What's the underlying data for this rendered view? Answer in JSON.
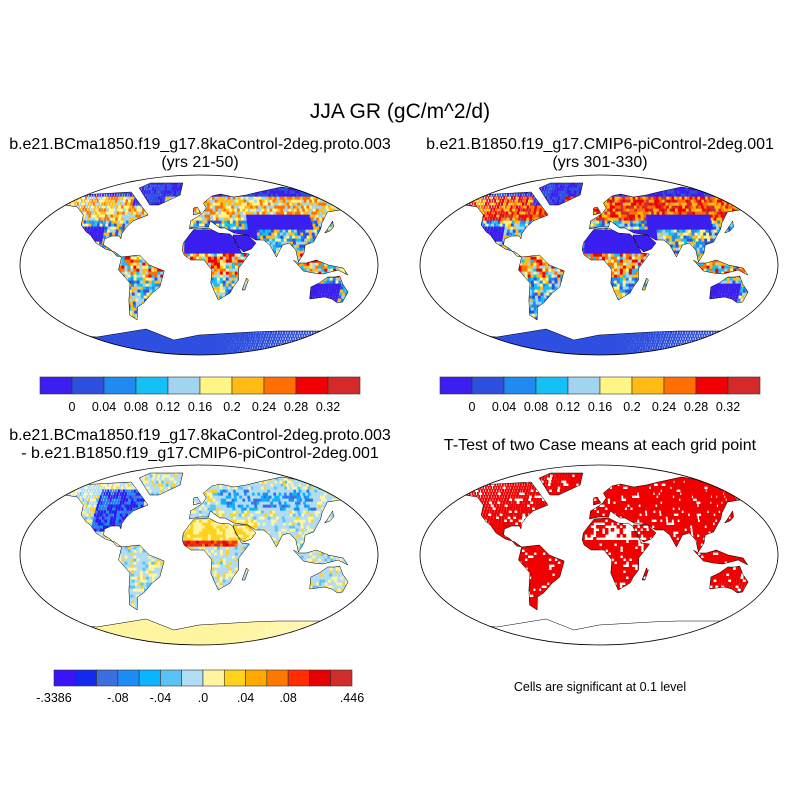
{
  "title": "JJA GR (gC/m^2/d)",
  "panels": [
    {
      "title_line1": "b.e21.BCma1850.f19_g17.8kaControl-2deg.proto.003",
      "title_line2": "(yrs 21-50)",
      "kind": "abs"
    },
    {
      "title_line1": "b.e21.B1850.f19_g17.CMIP6-piControl-2deg.001",
      "title_line2": "(yrs 301-330)",
      "kind": "abs2"
    },
    {
      "title_line1": "b.e21.BCma1850.f19_g17.8kaControl-2deg.proto.003",
      "title_line2": "- b.e21.B1850.f19_g17.CMIP6-piControl-2deg.001",
      "kind": "diff"
    },
    {
      "title_line1": "T-Test of two Case means at each grid point",
      "kind": "ttest"
    }
  ],
  "colorbar_abs": {
    "colors": [
      "#3b1ef0",
      "#2e4fe0",
      "#1f8af0",
      "#14c0f5",
      "#a0d4f0",
      "#fff585",
      "#ffbb14",
      "#ff7000",
      "#f00000",
      "#d42a2a"
    ],
    "labels": [
      "0",
      "0.04",
      "0.08",
      "0.12",
      "0.16",
      "0.2",
      "0.24",
      "0.28",
      "0.32"
    ]
  },
  "colorbar_diff": {
    "colors": [
      "#3b14f5",
      "#1428f0",
      "#3c6ee0",
      "#1e8cf5",
      "#0ab4ff",
      "#5ac3f5",
      "#b0dcf5",
      "#fff5a0",
      "#ffd21e",
      "#ffaa00",
      "#ff7800",
      "#ff2d00",
      "#e60000",
      "#d22d2d"
    ],
    "labels": [
      {
        "text": "-.3386",
        "boundary": 0
      },
      {
        "text": "-.08",
        "boundary": 3
      },
      {
        "text": "-.04",
        "boundary": 5
      },
      {
        "text": ".0",
        "boundary": 7
      },
      {
        "text": ".04",
        "boundary": 9
      },
      {
        "text": ".08",
        "boundary": 11
      },
      {
        "text": ".446",
        "boundary": 14
      }
    ]
  },
  "significance_note": "Cells are significant at 0.1 level",
  "significance_color": "#f00000"
}
